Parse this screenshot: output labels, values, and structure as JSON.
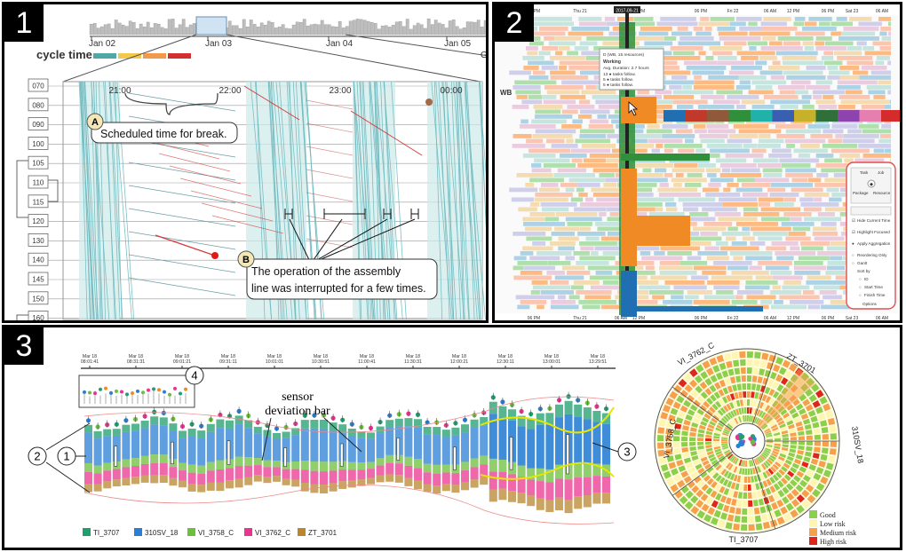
{
  "panels": {
    "p1": {
      "number": "1",
      "dates": [
        "Jan 02",
        "Jan 03",
        "Jan 04",
        "Jan 05"
      ],
      "edge_letter": "G",
      "cycle_time_label": "cycle time",
      "cycle_colors": [
        "#4fa8a8",
        "#f2c94c",
        "#f2994a",
        "#d32f2f"
      ],
      "stations": [
        "070",
        "080",
        "090",
        "100",
        "105",
        "110",
        "115",
        "120",
        "130",
        "140",
        "145",
        "150",
        "160"
      ],
      "hours": [
        "21:00",
        "22:00",
        "23:00",
        "00:00"
      ],
      "callout_a_letter": "A",
      "callout_a_text": "Scheduled time for break.",
      "callout_b_letter": "B",
      "callout_b_line1": "The operation of the assembly",
      "callout_b_line2": "line was interrupted for a few times."
    },
    "p2": {
      "number": "2",
      "top_axis": [
        "06 PM",
        "Thu 21",
        "06 AM",
        "12 PM",
        "06 PM",
        "Fri 22",
        "06 AM",
        "12 PM",
        "06 PM",
        "Sat 23",
        "06 AM"
      ],
      "bottom_axis": [
        "06 PM",
        "Thu 21",
        "06 AM",
        "12 PM",
        "06 PM",
        "Fri 22",
        "06 AM",
        "12 PM",
        "06 PM",
        "Sat 23",
        "06 AM"
      ],
      "row_label": "WB",
      "marker_label": "2017-09-21",
      "tooltip": {
        "title": "D (WB, 15 resources)",
        "status": "Working",
        "duration": "Avg. Duration: 2.7 hours",
        "line1": "13 ● tasks follow.",
        "line2": "5 ● tasks follow.",
        "line3": "5 ● tasks follow."
      },
      "controls": {
        "tab_task": "Task",
        "tab_job": "Job",
        "tab_package": "Package",
        "tab_resource": "Resource",
        "opt_hide": "Hide Current Time",
        "opt_highlight": "Highlight Focused",
        "opt_apply": "Apply Aggregation",
        "opt_reorder": "Reordering Only",
        "opt_gantt": "Gantt",
        "sort_by": "Sort by",
        "sort_id": "ID",
        "sort_start": "Start Time",
        "sort_finish": "Finish Time",
        "options": "Options"
      },
      "palette": [
        "#9ecae1",
        "#fdae6b",
        "#a1d99b",
        "#fcbba1",
        "#c7c7e8",
        "#f2d6a2",
        "#bde0d9",
        "#e8c3d8"
      ]
    },
    "p3": {
      "number": "3",
      "time_labels": [
        "Mar 18\n08:01:41",
        "Mar 18\n08:31:31",
        "Mar 18\n09:01:21",
        "Mar 18\n09:31:11",
        "Mar 18\n10:01:01",
        "Mar 18\n10:30:51",
        "Mar 18\n11:00:41",
        "Mar 18\n11:30:31",
        "Mar 18\n12:00:21",
        "Mar 18\n12:30:11",
        "Mar 18\n13:00:01",
        "Mar 18\n13:29:51"
      ],
      "circle_labels": [
        "1",
        "2",
        "3",
        "4"
      ],
      "sensor_label_line1": "sensor",
      "sensor_label_line2": "deviation bar",
      "legend": [
        {
          "name": "TI_3707",
          "color": "#1f9e6e"
        },
        {
          "name": "310SV_18",
          "color": "#2a7fd4"
        },
        {
          "name": "VI_3758_C",
          "color": "#6bbf3b"
        },
        {
          "name": "VI_3762_C",
          "color": "#e8358f"
        },
        {
          "name": "ZT_3701",
          "color": "#b8862e"
        }
      ],
      "radial_labels": {
        "top_left": "VI_3762_C",
        "top_right": "ZT_3701",
        "left": "VI_3758_C",
        "right": "310SV_18",
        "bottom": "TI_3707"
      },
      "risk_legend": [
        {
          "name": "Good",
          "color": "#8ccf4d"
        },
        {
          "name": "Low risk",
          "color": "#fdf5b0"
        },
        {
          "name": "Medium risk",
          "color": "#f6a04d"
        },
        {
          "name": "High risk",
          "color": "#e0261c"
        }
      ]
    }
  }
}
